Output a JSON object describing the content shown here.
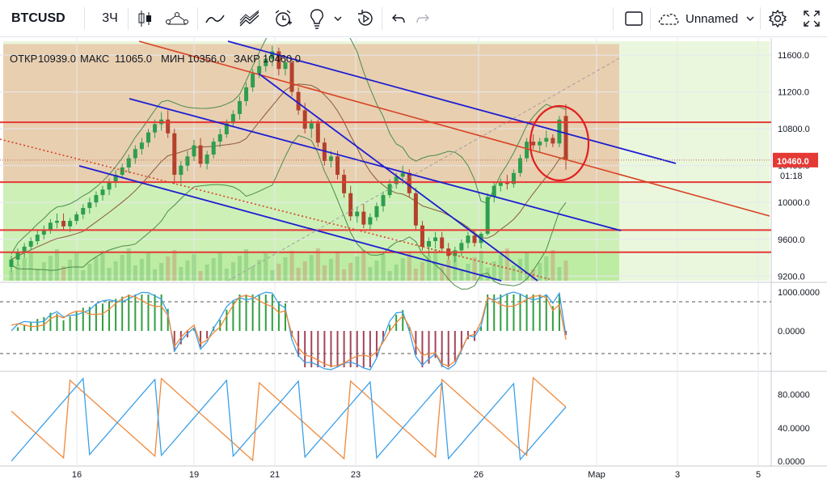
{
  "toolbar": {
    "symbol": "BTCUSD",
    "interval": "3Ч",
    "layout_name": "Unnamed",
    "icons": [
      "candles-icon",
      "compare-icon",
      "indicators-icon",
      "templates-icon",
      "alert-icon",
      "ideas-icon",
      "replay-icon",
      "undo-icon",
      "redo-icon",
      "fullscreen-box-icon",
      "cloud-icon",
      "settings-icon",
      "expand-icon"
    ]
  },
  "legend": {
    "open_label": "ОТКР",
    "open": "10939.0",
    "high_label": "МАКС",
    "high": "11065.0",
    "low_label": "МИН",
    "low": "10356.0",
    "close_label": "ЗАКР",
    "close": "10460.0"
  },
  "price_axis": {
    "ticks": [
      "11600.0",
      "11200.0",
      "10800.0",
      "10400.0",
      "10000.0",
      "9600.0",
      "9200.0"
    ],
    "last_price": "10460.0",
    "countdown": "01:18"
  },
  "osc1_axis": {
    "ticks": [
      "1000.0000",
      "0.0000"
    ]
  },
  "osc2_axis": {
    "ticks": [
      "80.0000",
      "40.0000",
      "0.0000"
    ]
  },
  "time_axis": {
    "ticks": [
      "16",
      "19",
      "21",
      "23",
      "26",
      "Мар",
      "3",
      "5"
    ]
  },
  "colors": {
    "candle_up": "#2e9e4f",
    "candle_down": "#b3412c",
    "red_line": "#e53935",
    "blue_line": "#1d1dd1",
    "zone_upper": "#e8c8a8",
    "zone_lower": "#c8efb0",
    "osc_blue": "#3aa0e8",
    "osc_orange": "#f0883a"
  },
  "chart_data": {
    "type": "candlestick",
    "symbol": "BTCUSD",
    "last_price": 10460.0,
    "y_range_price": [
      9150,
      11750
    ],
    "horizontal_levels": [
      10870,
      10220,
      9700,
      9460
    ],
    "candles": [
      [
        9300,
        9420,
        9250,
        9380
      ],
      [
        9380,
        9500,
        9320,
        9460
      ],
      [
        9460,
        9560,
        9400,
        9520
      ],
      [
        9520,
        9620,
        9480,
        9580
      ],
      [
        9580,
        9700,
        9540,
        9650
      ],
      [
        9650,
        9750,
        9600,
        9700
      ],
      [
        9700,
        9820,
        9660,
        9780
      ],
      [
        9780,
        9880,
        9720,
        9800
      ],
      [
        9800,
        9880,
        9700,
        9740
      ],
      [
        9740,
        9830,
        9680,
        9800
      ],
      [
        9800,
        9900,
        9760,
        9870
      ],
      [
        9870,
        9980,
        9820,
        9940
      ],
      [
        9940,
        10050,
        9880,
        10000
      ],
      [
        10000,
        10120,
        9950,
        10080
      ],
      [
        10080,
        10180,
        10020,
        10140
      ],
      [
        10140,
        10260,
        10080,
        10220
      ],
      [
        10220,
        10350,
        10160,
        10300
      ],
      [
        10300,
        10420,
        10260,
        10380
      ],
      [
        10380,
        10520,
        10320,
        10480
      ],
      [
        10480,
        10620,
        10420,
        10580
      ],
      [
        10580,
        10700,
        10520,
        10650
      ],
      [
        10650,
        10800,
        10600,
        10760
      ],
      [
        10760,
        10900,
        10700,
        10850
      ],
      [
        10850,
        10980,
        10780,
        10900
      ],
      [
        10900,
        11000,
        10700,
        10750
      ],
      [
        10750,
        10800,
        10200,
        10300
      ],
      [
        10300,
        10450,
        10200,
        10400
      ],
      [
        10400,
        10560,
        10340,
        10500
      ],
      [
        10500,
        10680,
        10450,
        10620
      ],
      [
        10620,
        10700,
        10380,
        10420
      ],
      [
        10420,
        10560,
        10360,
        10520
      ],
      [
        10520,
        10700,
        10480,
        10660
      ],
      [
        10660,
        10800,
        10600,
        10740
      ],
      [
        10740,
        10900,
        10700,
        10860
      ],
      [
        10860,
        11000,
        10820,
        10960
      ],
      [
        10960,
        11150,
        10900,
        11100
      ],
      [
        11100,
        11300,
        11050,
        11250
      ],
      [
        11250,
        11450,
        11200,
        11400
      ],
      [
        11400,
        11550,
        11350,
        11480
      ],
      [
        11480,
        11620,
        11420,
        11560
      ],
      [
        11560,
        11700,
        11480,
        11640
      ],
      [
        11640,
        11680,
        11380,
        11450
      ],
      [
        11450,
        11560,
        11380,
        11520
      ],
      [
        11520,
        11560,
        11150,
        11200
      ],
      [
        11200,
        11250,
        10950,
        11000
      ],
      [
        11000,
        11080,
        10750,
        10800
      ],
      [
        10800,
        10900,
        10700,
        10860
      ],
      [
        10860,
        10900,
        10600,
        10650
      ],
      [
        10650,
        10700,
        10400,
        10450
      ],
      [
        10450,
        10560,
        10380,
        10500
      ],
      [
        10500,
        10560,
        10250,
        10300
      ],
      [
        10300,
        10360,
        10050,
        10100
      ],
      [
        10100,
        10180,
        9800,
        9850
      ],
      [
        9850,
        9950,
        9780,
        9900
      ],
      [
        9900,
        9980,
        9720,
        9760
      ],
      [
        9760,
        9880,
        9700,
        9840
      ],
      [
        9840,
        10000,
        9800,
        9960
      ],
      [
        9960,
        10120,
        9900,
        10080
      ],
      [
        10080,
        10250,
        10050,
        10200
      ],
      [
        10200,
        10320,
        10150,
        10280
      ],
      [
        10280,
        10400,
        10200,
        10320
      ],
      [
        10320,
        10360,
        10050,
        10100
      ],
      [
        10100,
        10160,
        9700,
        9750
      ],
      [
        9750,
        9800,
        9480,
        9520
      ],
      [
        9520,
        9620,
        9420,
        9580
      ],
      [
        9580,
        9680,
        9500,
        9620
      ],
      [
        9620,
        9680,
        9450,
        9500
      ],
      [
        9500,
        9560,
        9380,
        9420
      ],
      [
        9420,
        9520,
        9350,
        9480
      ],
      [
        9480,
        9600,
        9420,
        9560
      ],
      [
        9560,
        9680,
        9500,
        9640
      ],
      [
        9640,
        9700,
        9520,
        9560
      ],
      [
        9560,
        9680,
        9500,
        9660
      ],
      [
        9660,
        10100,
        9640,
        10060
      ],
      [
        10060,
        10220,
        10000,
        10180
      ],
      [
        10180,
        10260,
        10120,
        10220
      ],
      [
        10220,
        10300,
        10140,
        10200
      ],
      [
        10200,
        10360,
        10160,
        10320
      ],
      [
        10320,
        10520,
        10280,
        10480
      ],
      [
        10480,
        10700,
        10440,
        10660
      ],
      [
        10660,
        10740,
        10580,
        10620
      ],
      [
        10620,
        10700,
        10540,
        10660
      ],
      [
        10660,
        10780,
        10600,
        10700
      ],
      [
        10700,
        10740,
        10600,
        10640
      ],
      [
        10640,
        10940,
        10600,
        10900
      ],
      [
        10939,
        11065,
        10356,
        10460
      ]
    ],
    "time_labels": [
      "16",
      "19",
      "21",
      "23",
      "26",
      "Мар",
      "3",
      "5"
    ]
  }
}
